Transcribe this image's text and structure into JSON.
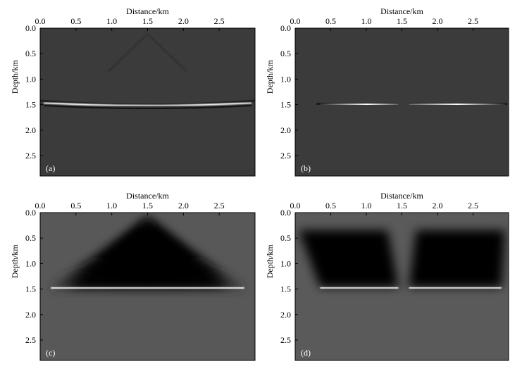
{
  "chart_data": [
    {
      "type": "image",
      "label": "(a)",
      "xlabel": "Distance/km",
      "ylabel": "Depth/km",
      "xlim": [
        0,
        3
      ],
      "ylim": [
        0,
        2.9
      ],
      "xticks": [
        {
          "value": 0,
          "label": "0.0"
        },
        0.5,
        {
          "value": 1,
          "label": "1.0"
        },
        1.5,
        {
          "value": 2,
          "label": "2.0"
        },
        2.5
      ],
      "yticks": [
        {
          "value": 0,
          "label": "0.0"
        },
        0.5,
        {
          "value": 1,
          "label": "1.0"
        },
        1.5,
        {
          "value": 2,
          "label": "2.0"
        },
        2.5
      ]
    },
    {
      "type": "image",
      "label": "(b)",
      "xlabel": "Distance/km",
      "ylabel": "Depth/km",
      "xlim": [
        0,
        3
      ],
      "ylim": [
        0,
        2.9
      ],
      "xticks": [
        {
          "value": 0,
          "label": "0.0"
        },
        0.5,
        {
          "value": 1,
          "label": "1.0"
        },
        1.5,
        {
          "value": 2,
          "label": "2.0"
        },
        2.5
      ],
      "yticks": [
        {
          "value": 0,
          "label": "0.0"
        },
        0.5,
        {
          "value": 1,
          "label": "1.0"
        },
        1.5,
        {
          "value": 2,
          "label": "2.0"
        },
        2.5
      ]
    },
    {
      "type": "image",
      "label": "(c)",
      "xlabel": "Distance/km",
      "ylabel": "Depth/km",
      "xlim": [
        0,
        3
      ],
      "ylim": [
        0,
        2.9
      ],
      "xticks": [
        {
          "value": 0,
          "label": "0.0"
        },
        0.5,
        {
          "value": 1,
          "label": "1.0"
        },
        1.5,
        {
          "value": 2,
          "label": "2.0"
        },
        2.5
      ],
      "yticks": [
        {
          "value": 0,
          "label": "0.0"
        },
        0.5,
        {
          "value": 1,
          "label": "1.0"
        },
        1.5,
        {
          "value": 2,
          "label": "2.0"
        },
        2.5
      ]
    },
    {
      "type": "image",
      "label": "(d)",
      "xlabel": "Distance/km",
      "ylabel": "Depth/km",
      "xlim": [
        0,
        3
      ],
      "ylim": [
        0,
        2.9
      ],
      "xticks": [
        {
          "value": 0,
          "label": "0.0"
        },
        0.5,
        {
          "value": 1,
          "label": "1.0"
        },
        1.5,
        {
          "value": 2,
          "label": "2.0"
        },
        2.5
      ],
      "yticks": [
        {
          "value": 0,
          "label": "0.0"
        },
        0.5,
        {
          "value": 1,
          "label": "1.0"
        },
        1.5,
        {
          "value": 2,
          "label": "2.0"
        },
        2.5
      ]
    }
  ]
}
